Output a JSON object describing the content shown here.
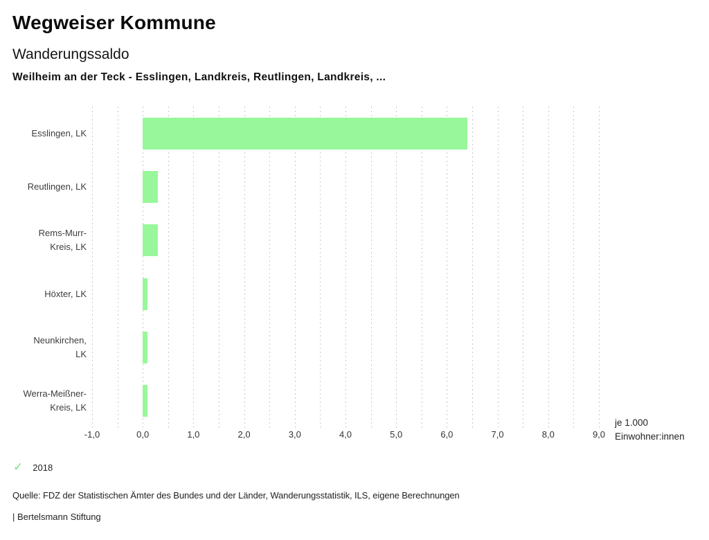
{
  "header": {
    "title": "Wegweiser Kommune",
    "subtitle": "Wanderungssaldo",
    "context": "Weilheim an der Teck - Esslingen, Landkreis, Reutlingen, Landkreis, ..."
  },
  "chart_data": {
    "type": "bar",
    "orientation": "horizontal",
    "title": "Wanderungssaldo",
    "categories": [
      "Esslingen, LK",
      "Reutlingen, LK",
      "Rems-Murr-Kreis, LK",
      "Höxter, LK",
      "Neunkirchen, LK",
      "Werra-Meißner-Kreis, LK"
    ],
    "category_lines": [
      [
        "Esslingen, LK"
      ],
      [
        "Reutlingen, LK"
      ],
      [
        "Rems-Murr-",
        "Kreis, LK"
      ],
      [
        "Höxter, LK"
      ],
      [
        "Neunkirchen,",
        "LK"
      ],
      [
        "Werra-Meißner-",
        "Kreis, LK"
      ]
    ],
    "series": [
      {
        "name": "2018",
        "values": [
          6.4,
          0.3,
          0.3,
          0.1,
          0.1,
          0.1
        ]
      }
    ],
    "xlim": [
      -1.0,
      9.0
    ],
    "x_ticks": [
      -1,
      0,
      1,
      2,
      3,
      4,
      5,
      6,
      7,
      8,
      9
    ],
    "x_tick_labels": [
      "-1,0",
      "0,0",
      "1,0",
      "2,0",
      "3,0",
      "4,0",
      "5,0",
      "6,0",
      "7,0",
      "8,0",
      "9,0"
    ],
    "grid": true,
    "grid_step": 0.5,
    "bar_color": "#98f79a",
    "gridline_color": "#c9c9c9",
    "unit_lines": [
      "je 1.000",
      "Einwohner:innen"
    ],
    "legend": {
      "marker_icon": "check-icon",
      "label": "2018",
      "color": "#76e388",
      "position": "bottom-left"
    }
  },
  "footer": {
    "source": "Quelle: FDZ der Statistischen Ämter des Bundes und der Länder, Wanderungsstatistik, ILS, eigene Berechnungen",
    "attribution": "| Bertelsmann Stiftung"
  }
}
